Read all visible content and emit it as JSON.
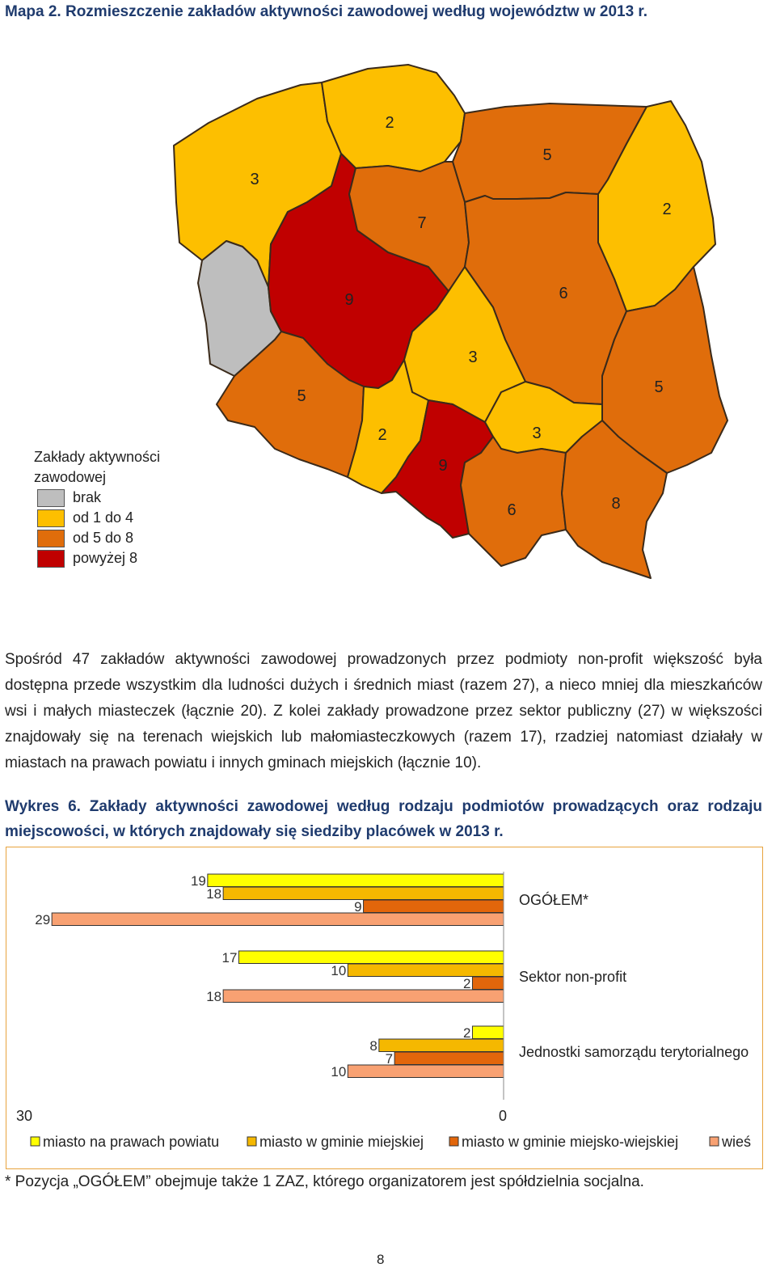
{
  "map": {
    "title": "Mapa 2.  Rozmieszczenie zakładów aktywności zawodowej według województw w 2013 r.",
    "colors": {
      "gray": "#bebebe",
      "yellow": "#fdbf00",
      "orange": "#e06d0b",
      "red": "#c00000",
      "border": "#3a2a1a"
    },
    "regions": [
      {
        "name": "zachodniopomorskie",
        "value": "3",
        "cls": "yellow"
      },
      {
        "name": "pomorskie",
        "value": "2",
        "cls": "yellow"
      },
      {
        "name": "warmińsko-mazurskie",
        "value": "5",
        "cls": "orange"
      },
      {
        "name": "podlaskie",
        "value": "2",
        "cls": "yellow"
      },
      {
        "name": "lubuskie",
        "value": "",
        "cls": "gray"
      },
      {
        "name": "wielkopolskie",
        "value": "9",
        "cls": "red"
      },
      {
        "name": "kujawsko-pomorskie",
        "value": "7",
        "cls": "orange"
      },
      {
        "name": "mazowieckie",
        "value": "6",
        "cls": "orange"
      },
      {
        "name": "łódzkie",
        "value": "3",
        "cls": "yellow"
      },
      {
        "name": "dolnośląskie",
        "value": "5",
        "cls": "orange"
      },
      {
        "name": "lubelskie",
        "value": "5",
        "cls": "orange"
      },
      {
        "name": "opolskie",
        "value": "2",
        "cls": "yellow"
      },
      {
        "name": "śląskie",
        "value": "9",
        "cls": "red"
      },
      {
        "name": "świętokrzyskie",
        "value": "3",
        "cls": "yellow"
      },
      {
        "name": "małopolskie",
        "value": "6",
        "cls": "orange"
      },
      {
        "name": "podkarpackie",
        "value": "8",
        "cls": "orange"
      }
    ],
    "legend": {
      "title_line1": "Zakłady aktywności",
      "title_line2": "zawodowej",
      "items": [
        {
          "label": "brak",
          "color": "#bebebe"
        },
        {
          "label": "od 1 do 4",
          "color": "#fdbf00"
        },
        {
          "label": "od 5 do 8",
          "color": "#e06d0b"
        },
        {
          "label": "powyżej 8",
          "color": "#c00000"
        }
      ]
    }
  },
  "paragraph": "Spośród 47 zakładów aktywności zawodowej prowadzonych przez podmioty non-profit większość była dostępna przede wszystkim dla ludności dużych i średnich miast (razem 27), a nieco mniej dla mieszkańców wsi i małych miasteczek (łącznie 20). Z kolei zakłady prowadzone przez sektor publiczny (27) w większości znajdowały się na terenach wiejskich lub małomiasteczkowych (razem 17), rzadziej natomiast działały w miastach na prawach powiatu i innych gminach miejskich (łącznie 10).",
  "chart_title": "Wykres 6. Zakłady aktywności zawodowej według rodzaju podmiotów prowadzących oraz rodzaju miejscowości, w których znajdowały się siedziby placówek w 2013 r.",
  "chart_data": {
    "type": "bar",
    "orientation": "horizontal-reversed",
    "categories": [
      "OGÓŁEM*",
      "Sektor non-profit",
      "Jednostki samorządu terytorialnego"
    ],
    "series": [
      {
        "name": "miasto na prawach powiatu",
        "color": "#ffff00",
        "values": [
          19,
          17,
          2
        ]
      },
      {
        "name": "miasto w gminie miejskiej",
        "color": "#f5b800",
        "values": [
          18,
          10,
          8
        ]
      },
      {
        "name": "miasto w gminie miejsko-wiejskiej",
        "color": "#e2660b",
        "values": [
          9,
          2,
          7
        ]
      },
      {
        "name": "wieś",
        "color": "#f8a172",
        "values": [
          29,
          18,
          10
        ]
      }
    ],
    "xlim": [
      0,
      30
    ],
    "axis_labels": {
      "left": "30",
      "right": "0"
    },
    "legend_position": "bottom"
  },
  "footnote": "* Pozycja „OGÓŁEM” obejmuje także 1 ZAZ, którego organizatorem jest spółdzielnia socjalna.",
  "page_number": "8"
}
